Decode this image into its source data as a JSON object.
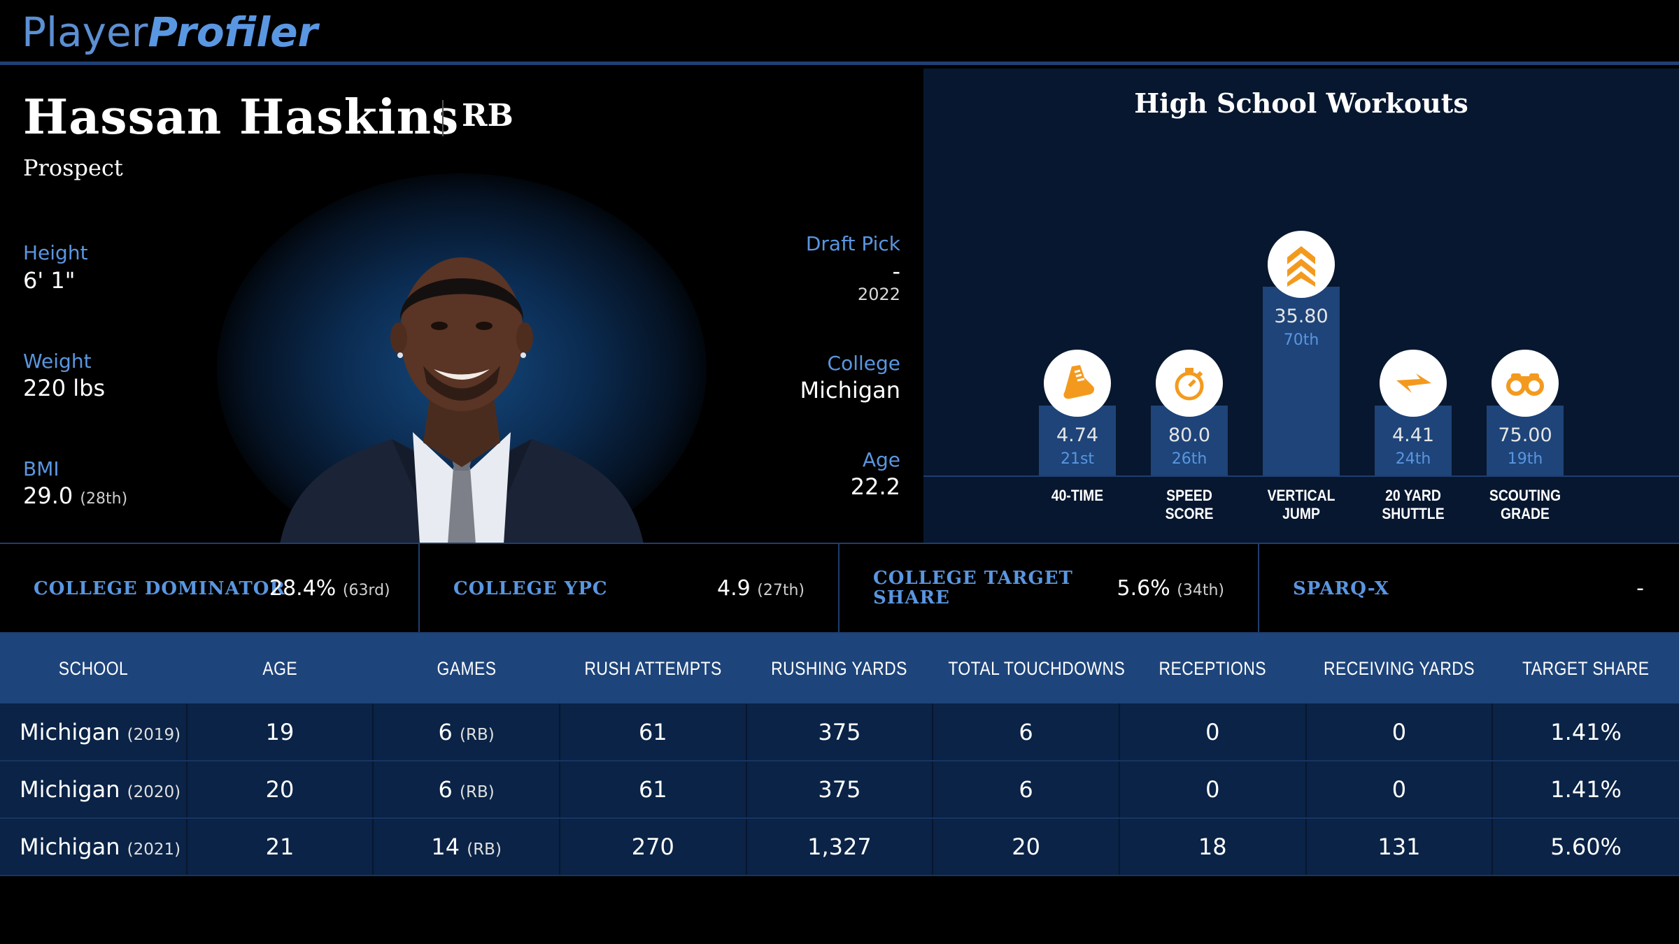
{
  "brand": {
    "part1": "Player",
    "part2": "Profiler"
  },
  "player": {
    "name": "Hassan Haskins",
    "position": "RB",
    "status": "Prospect",
    "height_label": "Height",
    "height": "6' 1\"",
    "weight_label": "Weight",
    "weight": "220 lbs",
    "bmi_label": "BMI",
    "bmi": "29.0",
    "bmi_rank": "(28th)",
    "draft_label": "Draft Pick",
    "draft_pick": "-",
    "draft_year": "2022",
    "college_label": "College",
    "college": "Michigan",
    "age_label": "Age",
    "age": "22.2"
  },
  "workouts": {
    "title": "High School Workouts",
    "items": [
      {
        "label1": "40-TIME",
        "label2": "",
        "value": "4.74",
        "rank": "21st",
        "percentile": 21,
        "icon": "running-shoe-icon"
      },
      {
        "label1": "SPEED",
        "label2": "SCORE",
        "value": "80.0",
        "rank": "26th",
        "percentile": 26,
        "icon": "stopwatch-icon"
      },
      {
        "label1": "VERTICAL",
        "label2": "JUMP",
        "value": "35.80",
        "rank": "70th",
        "percentile": 70,
        "icon": "chevrons-up-icon"
      },
      {
        "label1": "20 YARD",
        "label2": "SHUTTLE",
        "value": "4.41",
        "rank": "24th",
        "percentile": 24,
        "icon": "lightning-icon"
      },
      {
        "label1": "SCOUTING",
        "label2": "GRADE",
        "value": "75.00",
        "rank": "19th",
        "percentile": 19,
        "icon": "binoculars-icon"
      }
    ]
  },
  "metrics": [
    {
      "label1": "COLLEGE DOMINATOR",
      "label2": "",
      "value": "28.4%",
      "rank": "(63rd)"
    },
    {
      "label1": "COLLEGE YPC",
      "label2": "",
      "value": "4.9",
      "rank": "(27th)"
    },
    {
      "label1": "COLLEGE TARGET",
      "label2": "SHARE",
      "value": "5.6%",
      "rank": "(34th)"
    },
    {
      "label1": "SPARQ-X",
      "label2": "",
      "value": "-",
      "rank": ""
    }
  ],
  "table": {
    "headers": [
      "SCHOOL",
      "AGE",
      "GAMES",
      "RUSH ATTEMPTS",
      "RUSHING YARDS",
      "TOTAL TOUCHDOWNS",
      "RECEPTIONS",
      "RECEIVING YARDS",
      "TARGET SHARE"
    ],
    "rows": [
      {
        "school": "Michigan",
        "year": "(2019)",
        "age": "19",
        "games": "6",
        "games_pos": "(RB)",
        "rush_att": "61",
        "rush_yds": "375",
        "tds": "6",
        "rec": "0",
        "rec_yds": "0",
        "target_share": "1.41%"
      },
      {
        "school": "Michigan",
        "year": "(2020)",
        "age": "20",
        "games": "6",
        "games_pos": "(RB)",
        "rush_att": "61",
        "rush_yds": "375",
        "tds": "6",
        "rec": "0",
        "rec_yds": "0",
        "target_share": "1.41%"
      },
      {
        "school": "Michigan",
        "year": "(2021)",
        "age": "21",
        "games": "14",
        "games_pos": "(RB)",
        "rush_att": "270",
        "rush_yds": "1,327",
        "tds": "20",
        "rec": "18",
        "rec_yds": "131",
        "target_share": "5.60%"
      }
    ]
  },
  "colors": {
    "accent": "#5a96e0",
    "panel": "#07172f",
    "bar": "#1e4479",
    "icon": "#f39a1e"
  }
}
